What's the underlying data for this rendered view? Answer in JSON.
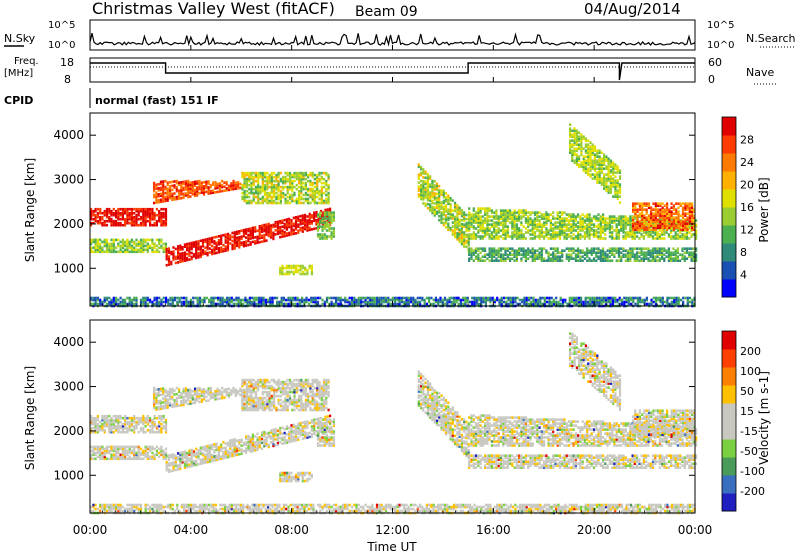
{
  "header": {
    "station": "Christmas Valley West (fitACF)",
    "beam": "Beam 09",
    "date": "04/Aug/2014"
  },
  "top_panels": {
    "nsky_label": "N.Sky",
    "nsky_ticks": [
      "10^5",
      "10^0"
    ],
    "nsearch_label": "N.Search",
    "nsearch_ticks": [
      "10^5",
      "10^0"
    ],
    "freq_label_line1": "Freq.",
    "freq_label_line2": "[MHz]",
    "freq_ticks": [
      "18",
      "8"
    ],
    "nave_label": "Nave",
    "nave_ticks": [
      "60",
      "0"
    ],
    "cpid_label": "CPID",
    "cpid_text": "normal (fast) 151 IF"
  },
  "chart_data": [
    {
      "type": "heatmap",
      "name": "power",
      "ylabel": "Slant Range [km]",
      "yticks": [
        1000,
        2000,
        3000,
        4000
      ],
      "ylim": [
        150,
        4500
      ],
      "xticks": [
        "00:00",
        "04:00",
        "08:00",
        "12:00",
        "16:00",
        "20:00",
        "00:00"
      ],
      "xlim": [
        0,
        24
      ],
      "colorbar_label": "Power [dB]",
      "colorbar_ticks": [
        "28",
        "24",
        "20",
        "16",
        "12",
        "8",
        "4"
      ],
      "colors": [
        "#0000ff",
        "#1a4fb4",
        "#2f8a7a",
        "#4caf50",
        "#9acd32",
        "#e0e000",
        "#ffb000",
        "#ff7a00",
        "#ff3c00",
        "#e00000"
      ]
    },
    {
      "type": "heatmap",
      "name": "velocity",
      "ylabel": "Slant Range [km]",
      "yticks": [
        1000,
        2000,
        3000,
        4000
      ],
      "ylim": [
        150,
        4500
      ],
      "xticks": [
        "00:00",
        "04:00",
        "08:00",
        "12:00",
        "16:00",
        "20:00",
        "00:00"
      ],
      "xlim": [
        0,
        24
      ],
      "xlabel": "Time UT",
      "colorbar_label": "Velocity [m s-1]",
      "colorbar_ticks": [
        "200",
        "100",
        "50",
        "15",
        "-15",
        "-50",
        "-100",
        "-200"
      ],
      "colors": [
        "#2020c0",
        "#3a6fc0",
        "#4a9a5a",
        "#7ad040",
        "#c8c8c0",
        "#c8c8c0",
        "#ffc000",
        "#ff8000",
        "#ff4000",
        "#e00000"
      ]
    }
  ]
}
